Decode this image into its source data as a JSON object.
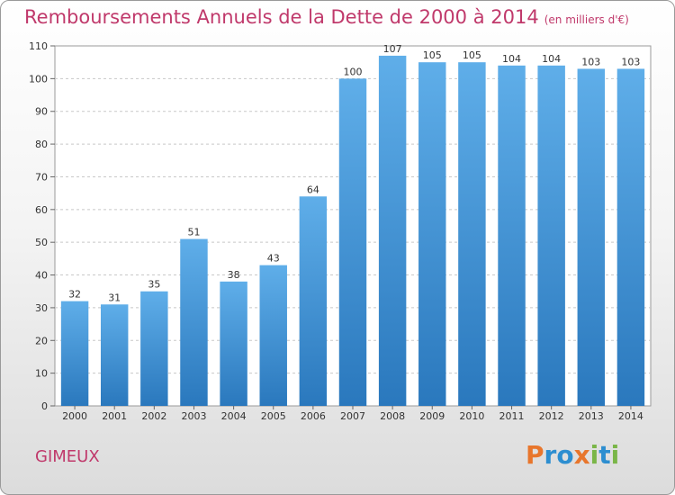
{
  "chart_data": {
    "type": "bar",
    "title": "Remboursements Annuels de la Dette de 2000 à 2014",
    "subtitle": "(en milliers d'€)",
    "categories": [
      "2000",
      "2001",
      "2002",
      "2003",
      "2004",
      "2005",
      "2006",
      "2007",
      "2008",
      "2009",
      "2010",
      "2011",
      "2012",
      "2013",
      "2014"
    ],
    "values": [
      32,
      31,
      35,
      51,
      38,
      43,
      64,
      100,
      107,
      105,
      105,
      104,
      104,
      103,
      103
    ],
    "ylim": [
      0,
      110
    ],
    "yticks": [
      0,
      10,
      20,
      30,
      40,
      50,
      60,
      70,
      80,
      90,
      100,
      110
    ],
    "grid": true,
    "bar_color": "#4a97d6"
  },
  "footer": {
    "place": "GIMEUX",
    "logo": [
      "P",
      "r",
      "o",
      "x",
      "i",
      "t",
      "i"
    ],
    "logo_colors": [
      "#e8762c",
      "#2d8ed0",
      "#2d8ed0",
      "#e8762c",
      "#7ab648",
      "#2d8ed0",
      "#7ab648"
    ]
  }
}
